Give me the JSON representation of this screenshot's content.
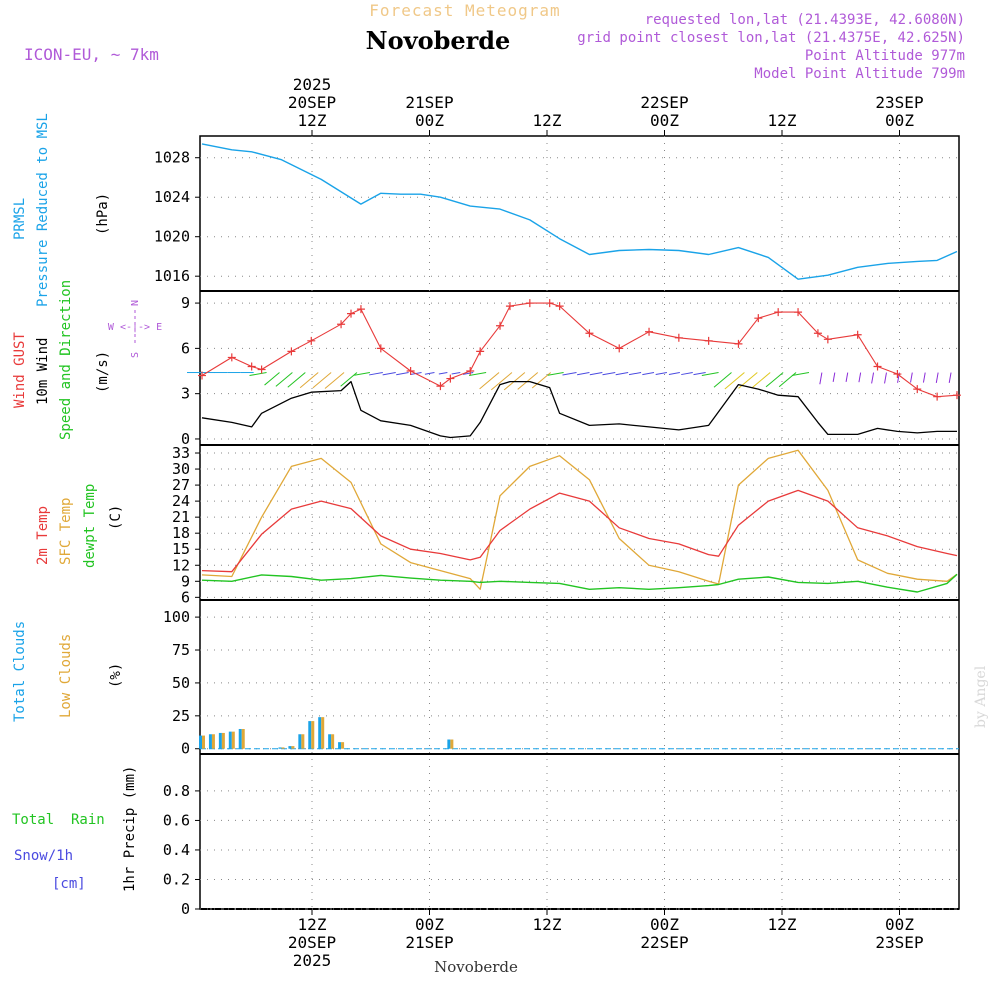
{
  "header": {
    "subtitle": "Forecast Meteogram",
    "title": "Novoberde",
    "model": "ICON-EU, ~ 7km",
    "requested": "requested lon,lat (21.4393E, 42.6080N)",
    "grid_point": "grid point closest lon,lat (21.4375E, 42.625N)",
    "point_altitude": "Point Altitude 977m",
    "model_altitude": "Model Point Altitude 799m"
  },
  "colors": {
    "purple": "#b05ad8",
    "cyan": "#1aa3e8",
    "red": "#e83a3a",
    "orange": "#e0a838",
    "green": "#22c422",
    "blue": "#4a4ae0",
    "title_sub": "#f0c888"
  },
  "time_axis": {
    "top_ticks": [
      {
        "lines": [
          "2025",
          "20SEP",
          "12Z"
        ]
      },
      {
        "lines": [
          "21SEP",
          "00Z"
        ]
      },
      {
        "lines": [
          "12Z"
        ]
      },
      {
        "lines": [
          "22SEP",
          "00Z"
        ]
      },
      {
        "lines": [
          "12Z"
        ]
      },
      {
        "lines": [
          "23SEP",
          "00Z"
        ]
      }
    ],
    "bottom_ticks": [
      {
        "lines": [
          "12Z",
          "20SEP",
          "2025"
        ]
      },
      {
        "lines": [
          "00Z",
          "21SEP"
        ]
      },
      {
        "lines": [
          "12Z"
        ]
      },
      {
        "lines": [
          "00Z",
          "22SEP"
        ]
      },
      {
        "lines": [
          "12Z"
        ]
      },
      {
        "lines": [
          "00Z",
          "23SEP"
        ]
      }
    ],
    "footer_label": "Novoberde"
  },
  "panel_labels": {
    "pressure": {
      "l1": "PRMSL",
      "l2": "Pressure Reduced to MSL",
      "unit": "(hPa)"
    },
    "wind": {
      "gust": "Wind GUST",
      "wind10": "10m Wind",
      "speed": "Speed and Direction",
      "unit": "(m/s)",
      "compass_n": "N",
      "compass_s": "S",
      "compass_we": "W <-|-> E"
    },
    "temp": {
      "t2m": "2m Temp",
      "sfc": "SFC Temp",
      "dewpt": "dewpt Temp",
      "unit": "(C)"
    },
    "clouds": {
      "total": "Total Clouds",
      "low": "Low Clouds",
      "unit": "(%)"
    },
    "precip": {
      "rain": "Total  Rain",
      "snow": "Snow/1h",
      "snow_unit": "[cm]",
      "unit": "1hr Precip (mm)"
    }
  },
  "watermark": "by Angel",
  "chart_data": [
    {
      "type": "line",
      "panel": "pressure",
      "ylabel": "(hPa)",
      "ylim": [
        1014.5,
        1030.2
      ],
      "yticks": [
        1016,
        1020,
        1024,
        1028
      ],
      "x_hours": [
        0,
        3,
        5,
        8,
        12,
        16,
        18,
        20,
        22,
        24,
        27,
        30,
        33,
        36,
        39,
        42,
        45,
        48,
        51,
        54,
        57,
        60,
        63,
        66,
        69,
        72,
        74,
        76
      ],
      "series": [
        {
          "name": "PRMSL",
          "values": [
            1029.4,
            1028.8,
            1028.6,
            1027.8,
            1025.8,
            1023.3,
            1024.4,
            1024.3,
            1024.3,
            1024.0,
            1023.1,
            1022.8,
            1021.7,
            1019.8,
            1018.2,
            1018.6,
            1018.7,
            1018.6,
            1018.2,
            1018.9,
            1017.9,
            1015.7,
            1016.1,
            1016.9,
            1017.3,
            1017.5,
            1017.6,
            1018.5
          ]
        }
      ]
    },
    {
      "type": "line",
      "panel": "wind",
      "ylabel": "(m/s)",
      "ylim": [
        -0.4,
        9.8
      ],
      "yticks": [
        0,
        3,
        6,
        9
      ],
      "x_hours": [
        0,
        3,
        5,
        6,
        9,
        11,
        14,
        15,
        16,
        18,
        21,
        24,
        25,
        27,
        28,
        30,
        31,
        33,
        35,
        36,
        39,
        42,
        45,
        48,
        51,
        54,
        56,
        58,
        60,
        62,
        63,
        66,
        68,
        70,
        72,
        74,
        76
      ],
      "series": [
        {
          "name": "Wind GUST",
          "values": [
            4.2,
            5.4,
            4.8,
            4.6,
            5.8,
            6.5,
            7.6,
            8.3,
            8.6,
            6.0,
            4.5,
            3.5,
            4.0,
            4.5,
            5.8,
            7.5,
            8.8,
            9.0,
            9.0,
            8.8,
            7.0,
            6.0,
            7.1,
            6.7,
            6.5,
            6.3,
            8.0,
            8.4,
            8.4,
            7.0,
            6.6,
            6.9,
            4.8,
            4.3,
            3.3,
            2.8,
            2.9
          ]
        },
        {
          "name": "10m Wind",
          "values": [
            1.4,
            1.1,
            0.8,
            1.7,
            2.7,
            3.1,
            3.2,
            3.8,
            1.9,
            1.2,
            0.9,
            0.2,
            0.1,
            0.2,
            1.1,
            3.6,
            3.8,
            3.8,
            3.4,
            1.7,
            0.9,
            1.0,
            0.8,
            0.6,
            0.9,
            3.6,
            3.3,
            2.9,
            2.8,
            1.1,
            0.3,
            0.3,
            0.7,
            0.5,
            0.4,
            0.5,
            0.5
          ]
        }
      ]
    },
    {
      "type": "line",
      "panel": "temperature",
      "ylabel": "(C)",
      "ylim": [
        5.5,
        34.5
      ],
      "yticks": [
        6,
        9,
        12,
        15,
        18,
        21,
        24,
        27,
        30,
        33
      ],
      "x_hours": [
        0,
        3,
        6,
        9,
        12,
        15,
        18,
        21,
        24,
        27,
        28,
        30,
        33,
        36,
        39,
        42,
        45,
        48,
        51,
        52,
        54,
        57,
        60,
        63,
        66,
        69,
        72,
        75,
        76
      ],
      "series": [
        {
          "name": "2m Temp",
          "values": [
            11.0,
            10.8,
            17.8,
            22.5,
            24.0,
            22.6,
            17.5,
            15.0,
            14.2,
            13.0,
            13.5,
            18.5,
            22.5,
            25.5,
            24.0,
            19.0,
            17.0,
            16.0,
            14.0,
            13.7,
            19.5,
            24.0,
            26.0,
            24.0,
            19.0,
            17.5,
            15.5,
            14.2,
            13.8
          ]
        },
        {
          "name": "SFC Temp",
          "values": [
            10.2,
            9.9,
            21.0,
            30.5,
            32.0,
            27.5,
            16.0,
            12.5,
            11.0,
            9.5,
            7.5,
            25.0,
            30.5,
            32.5,
            28.0,
            17.0,
            12.0,
            10.8,
            9.0,
            8.5,
            27.0,
            32.0,
            33.5,
            26.0,
            13.0,
            10.5,
            9.4,
            9.0,
            10.3
          ]
        },
        {
          "name": "dewpt Temp",
          "values": [
            9.2,
            9.0,
            10.2,
            9.9,
            9.2,
            9.5,
            10.1,
            9.6,
            9.2,
            9.0,
            8.8,
            9.0,
            8.8,
            8.6,
            7.5,
            7.8,
            7.5,
            7.8,
            8.2,
            8.4,
            9.4,
            9.8,
            8.8,
            8.6,
            9.0,
            7.9,
            7.0,
            8.6,
            10.3
          ]
        }
      ]
    },
    {
      "type": "bar",
      "panel": "clouds",
      "ylabel": "(%)",
      "ylim": [
        -4,
        113
      ],
      "yticks": [
        0,
        25,
        50,
        75,
        100
      ],
      "x_hours": [
        0,
        1,
        2,
        3,
        4,
        8,
        9,
        10,
        11,
        12,
        13,
        14,
        25
      ],
      "series": [
        {
          "name": "Total Clouds",
          "values": [
            10,
            11,
            12,
            13,
            15,
            1,
            2,
            11,
            21,
            24,
            11,
            5,
            7
          ]
        },
        {
          "name": "Low Clouds",
          "values": [
            10,
            11,
            12,
            13,
            15,
            1,
            2,
            11,
            21,
            24,
            11,
            5,
            7
          ]
        }
      ]
    },
    {
      "type": "bar",
      "panel": "precip",
      "ylabel": "1hr Precip (mm)",
      "ylim": [
        0,
        1.05
      ],
      "yticks": [
        0,
        0.2,
        0.4,
        0.6,
        0.8
      ],
      "series": [
        {
          "name": "Total Rain",
          "values": []
        },
        {
          "name": "Snow/1h",
          "values": []
        }
      ]
    }
  ]
}
